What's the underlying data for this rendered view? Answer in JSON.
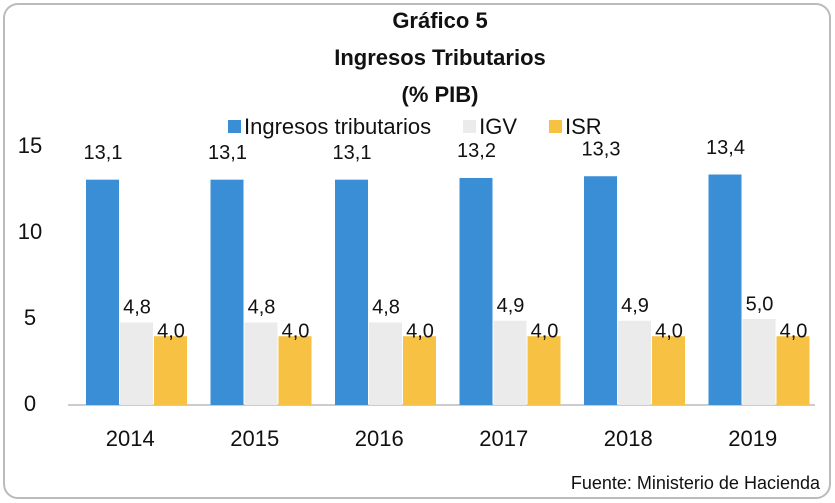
{
  "chart_data": {
    "type": "bar",
    "title": [
      "Gráfico 5",
      "Ingresos Tributarios",
      "(% PIB)"
    ],
    "categories": [
      "2014",
      "2015",
      "2016",
      "2017",
      "2018",
      "2019"
    ],
    "series": [
      {
        "name": "Ingresos tributarios",
        "color": "#3a8ed6",
        "values": [
          13.1,
          13.1,
          13.1,
          13.2,
          13.3,
          13.4
        ],
        "value_labels": [
          "13,1",
          "13,1",
          "13,1",
          "13,2",
          "13,3",
          "13,4"
        ]
      },
      {
        "name": "IGV",
        "color": "#ebebeb",
        "values": [
          4.8,
          4.8,
          4.8,
          4.9,
          4.9,
          5.0
        ],
        "value_labels": [
          "4,8",
          "4,8",
          "4,8",
          "4,9",
          "4,9",
          "5,0"
        ]
      },
      {
        "name": "ISR",
        "color": "#f7c244",
        "values": [
          4.0,
          4.0,
          4.0,
          4.0,
          4.0,
          4.0
        ],
        "value_labels": [
          "4,0",
          "4,0",
          "4,0",
          "4,0",
          "4,0",
          "4,0"
        ]
      }
    ],
    "ylim": [
      0,
      15
    ],
    "yticks": [
      0,
      5,
      10,
      15
    ],
    "source": "Fuente: Ministerio de Hacienda"
  }
}
